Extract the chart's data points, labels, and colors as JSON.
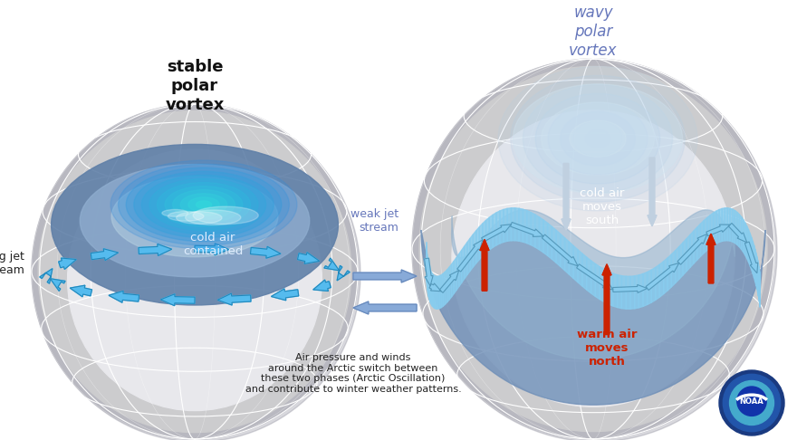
{
  "background_color": "#ffffff",
  "fig_width": 8.8,
  "fig_height": 4.86,
  "dpi": 100,
  "left_title": "stable\npolar\nvortex",
  "right_title": "wavy\npolar\nvortex",
  "left_label1": "strong jet\nstream",
  "left_label2": "cold air\ncontained",
  "right_label1": "weak jet\nstream",
  "right_label2": "cold air\nmoves\nsouth",
  "right_label3": "warm air\nmoves\nnorth",
  "bottom_text": "Air pressure and winds\naround the Arctic switch between\nthese two phases (Arctic Oscillation)\nand contribute to winter weather patterns.",
  "title_color_left": "#111111",
  "title_color_right": "#6677bb",
  "label_color_blue": "#6677bb",
  "label_color_red": "#cc2200",
  "globe_outer_color": "#b8b8c0",
  "globe_inner_color": "#ccccce",
  "globe_land_color": "#e8e8ec",
  "grid_color": "#ffffff",
  "cap_blue_dark": "#7090b8",
  "cap_blue_mid": "#90aed0",
  "cap_blue_light": "#b8d0e8",
  "jet_arrow_color": "#55aadd",
  "jet_arrow_outline": "#3388bb",
  "spiral_color_dark": "#3a88c0",
  "spiral_color_light": "#88ccee",
  "wavy_blue": "#8ab0d0",
  "red_arrow": "#cc2200",
  "white_arrow": "#ccddee",
  "mid_arrow_color": "#88aad8"
}
